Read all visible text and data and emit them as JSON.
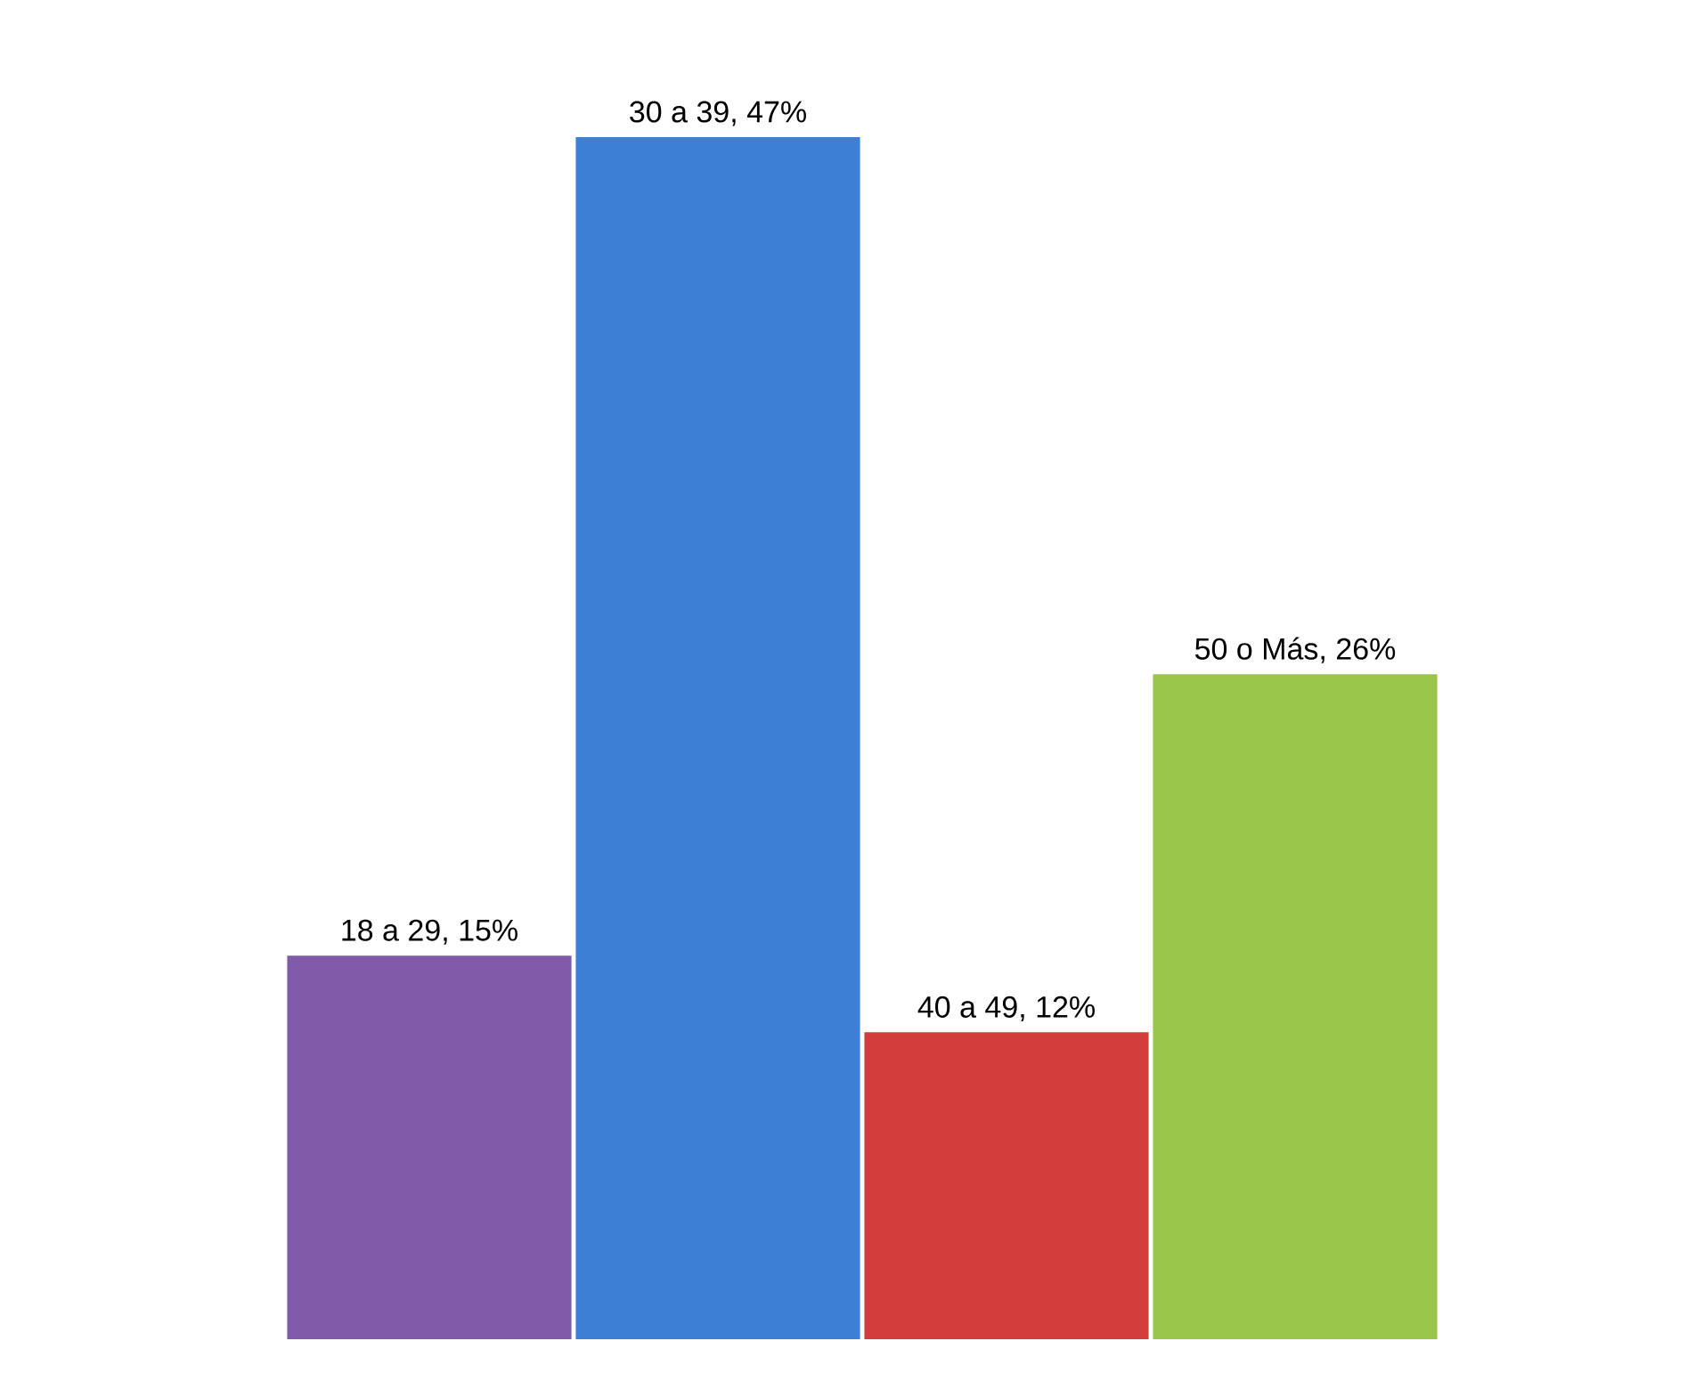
{
  "chart_data": {
    "type": "bar",
    "categories": [
      null,
      null,
      null,
      null
    ],
    "values": [
      15,
      47,
      12,
      26
    ],
    "value_labels": [
      "18 a 29, 15%",
      "30 a 39, 47%",
      "40 a 49, 12%",
      "50 o Más, 26%"
    ],
    "colors": [
      "#7f5aa8",
      "#3c7fd4",
      "#d23c3a",
      "#98c54a"
    ]
  }
}
